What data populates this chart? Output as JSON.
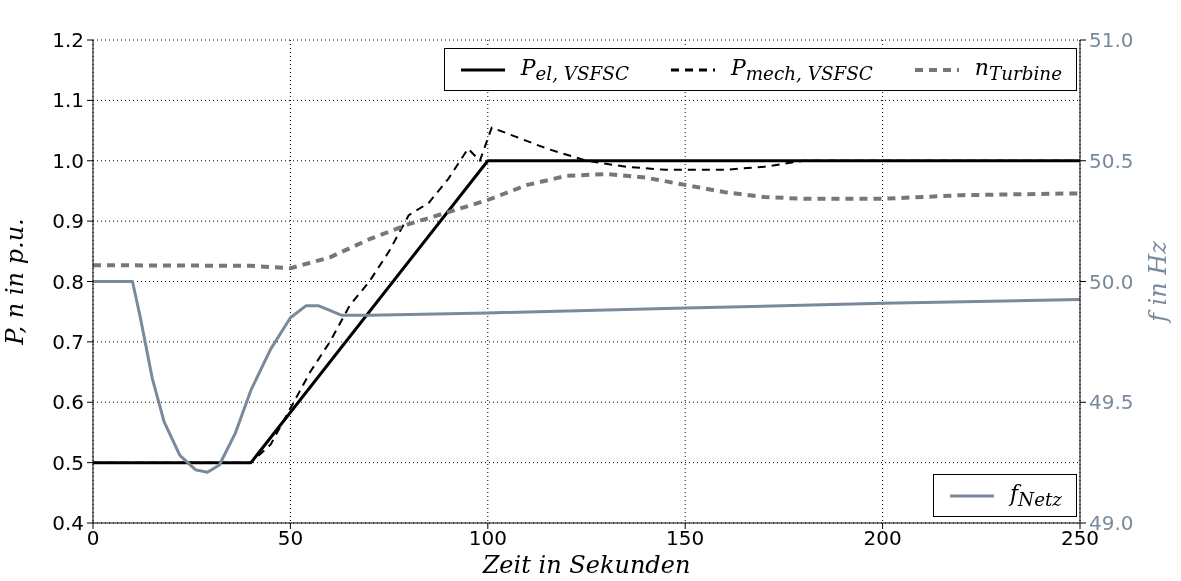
{
  "chart_data": {
    "type": "line",
    "xlabel": "Zeit  in  Sekunden",
    "ylabel": "P, n  in  p.u.",
    "y2label": "f  in  Hz",
    "xlim": [
      0,
      250
    ],
    "xticks": [
      0,
      50,
      100,
      150,
      200,
      250
    ],
    "ylim": [
      0.4,
      1.2
    ],
    "yticks": [
      0.4,
      0.5,
      0.6,
      0.7,
      0.8,
      0.9,
      {
        "value": 1,
        "label": "1.0"
      },
      1.1,
      1.2
    ],
    "y2lim": [
      49,
      51
    ],
    "y2ticks": [
      {
        "value": 49,
        "label": "49.0"
      },
      49.5,
      {
        "value": 50,
        "label": "50.0"
      },
      50.5,
      {
        "value": 51,
        "label": "51.0"
      }
    ],
    "grid": true,
    "legend": "right",
    "line_style": "solid",
    "series": [
      {
        "name": "P$_{el, VSFSC}$",
        "color": "#000000",
        "x": [
          0,
          40,
          100,
          250
        ],
        "values": [
          0.5,
          0.5,
          1.0,
          1.0
        ]
      },
      {
        "name": "P$_{mech, VSFSC}$",
        "color": "#000000",
        "line_style": "dashed",
        "x": [
          0,
          40,
          45,
          50,
          55,
          60,
          65,
          70,
          75,
          80,
          85,
          90,
          95,
          98,
          101,
          105,
          115,
          125,
          135,
          145,
          160,
          170,
          180,
          250
        ],
        "values": [
          0.5,
          0.5,
          0.53,
          0.59,
          0.65,
          0.7,
          0.76,
          0.8,
          0.85,
          0.91,
          0.93,
          0.97,
          1.02,
          1.0,
          1.055,
          1.045,
          1.02,
          1.0,
          0.99,
          0.985,
          0.985,
          0.99,
          1.0,
          1.0
        ]
      },
      {
        "name": "n$_{Turbine}$",
        "color": "#777777",
        "line_style": "dashed",
        "x": [
          0,
          40,
          50,
          60,
          70,
          80,
          90,
          100,
          110,
          120,
          130,
          140,
          150,
          160,
          170,
          180,
          200,
          220,
          250
        ],
        "values": [
          0.827,
          0.826,
          0.822,
          0.84,
          0.87,
          0.895,
          0.915,
          0.935,
          0.96,
          0.975,
          0.978,
          0.972,
          0.96,
          0.948,
          0.94,
          0.937,
          0.937,
          0.943,
          0.946
        ]
      },
      {
        "name": "f$_{Netz}$",
        "color": "#7a8a9c",
        "axis": "y2",
        "x": [
          0,
          10,
          12,
          15,
          18,
          22,
          26,
          29,
          32,
          36,
          40,
          45,
          50,
          54,
          57,
          60,
          63,
          70,
          100,
          150,
          200,
          250
        ],
        "values": [
          50,
          50,
          49.85,
          49.6,
          49.42,
          49.28,
          49.22,
          49.21,
          49.24,
          49.37,
          49.55,
          49.72,
          49.85,
          49.9,
          49.9,
          49.88,
          49.86,
          49.86,
          49.87,
          49.89,
          49.91,
          49.925
        ]
      }
    ]
  }
}
